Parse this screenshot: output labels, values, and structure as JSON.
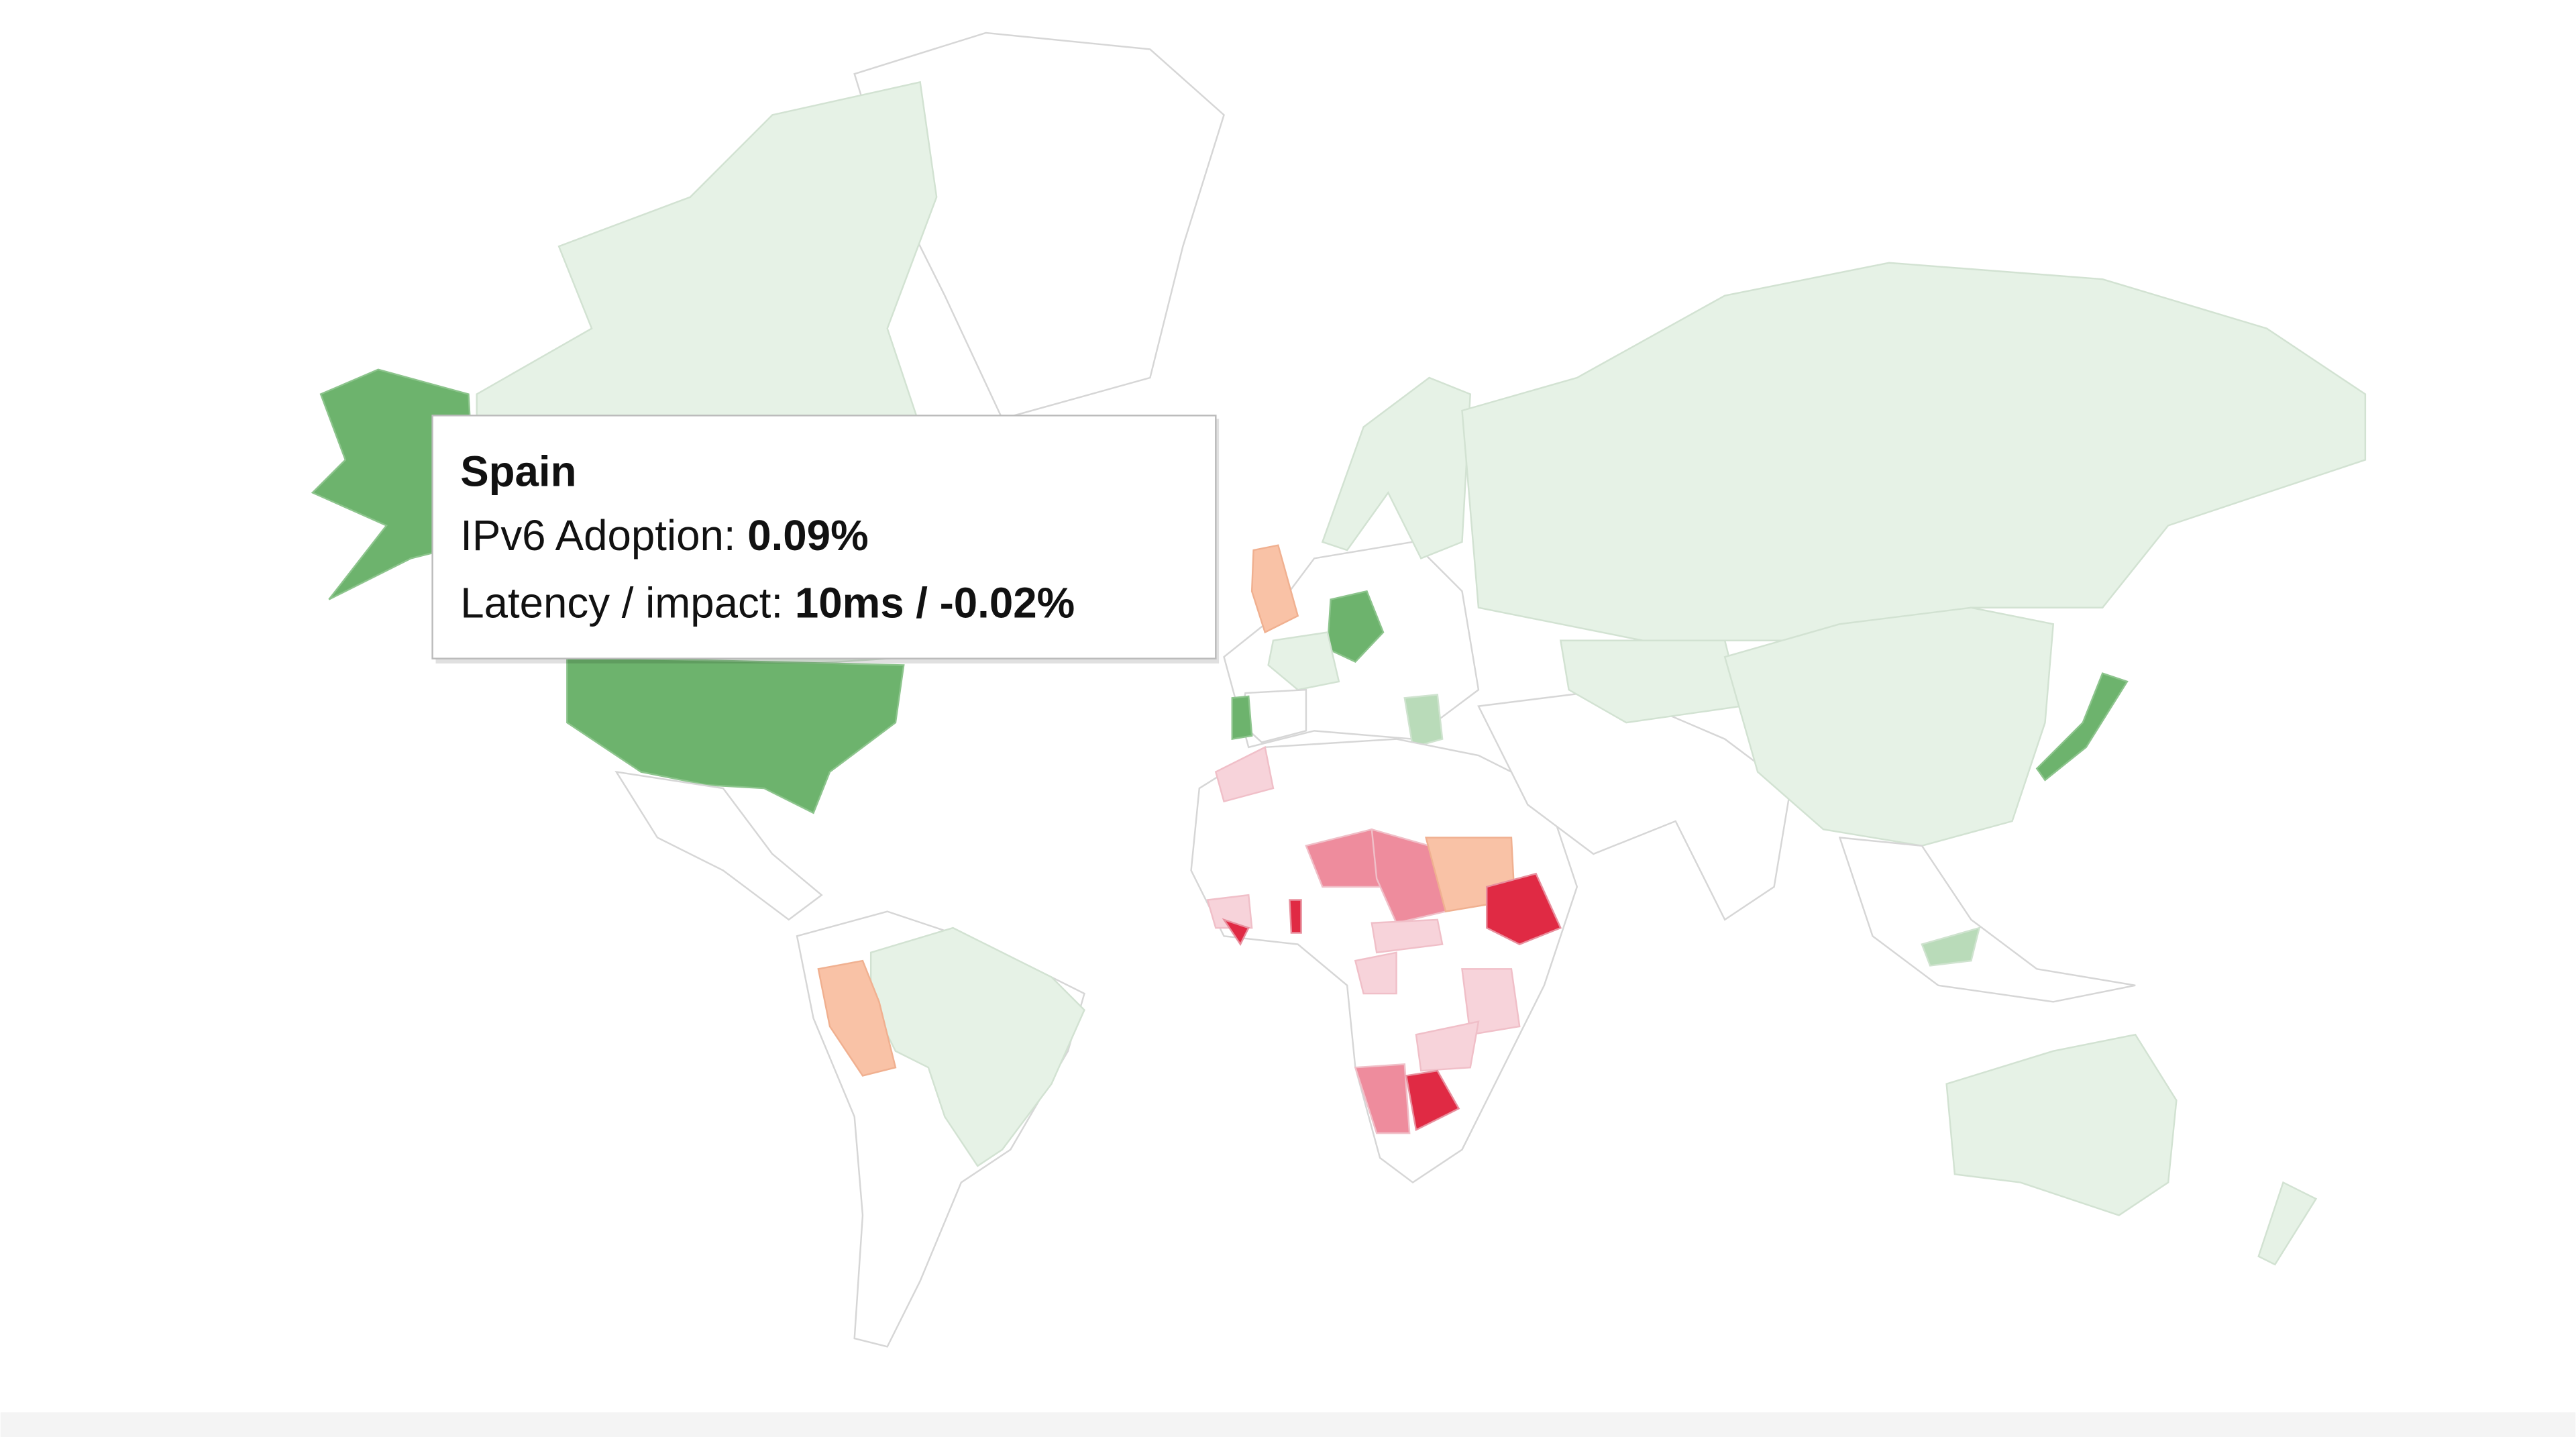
{
  "tooltip": {
    "title": "Spain",
    "lines": [
      {
        "label": "IPv6 Adoption:",
        "value": "0.09%"
      },
      {
        "label": "Latency / impact:",
        "value": "10ms / -0.02%"
      }
    ]
  }
}
